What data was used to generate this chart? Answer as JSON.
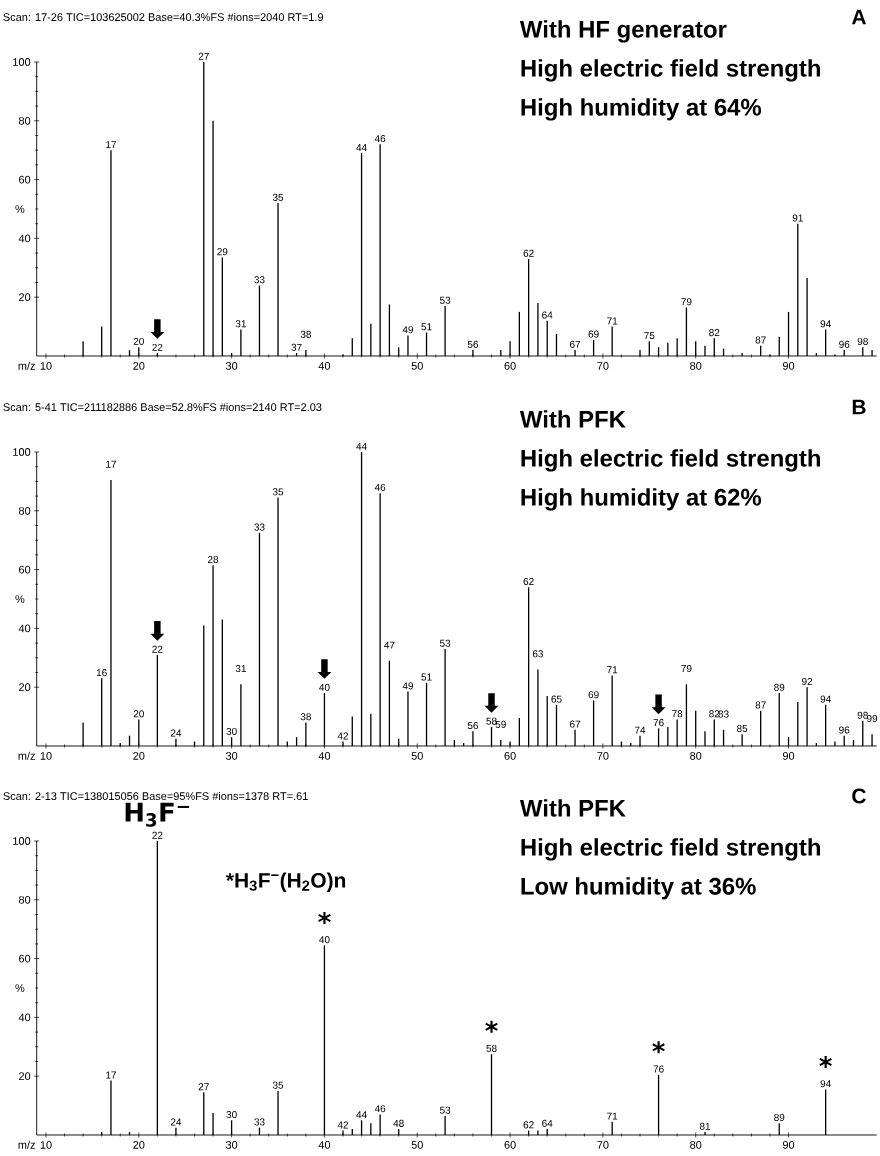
{
  "chart_data": [
    {
      "type": "bar",
      "title": "A",
      "subtitle": "Scan: 17-26   TIC=103625002   Base=40.3%FS   #ions=2040   RT=1.9",
      "xlabel": "m/z",
      "ylabel": "%",
      "color": "#000000",
      "x": [
        14,
        16,
        17,
        19,
        20,
        22,
        27,
        28,
        29,
        30,
        31,
        33,
        35,
        37,
        38,
        40,
        42,
        43,
        44,
        45,
        46,
        47,
        48,
        49,
        51,
        53,
        54,
        56,
        59,
        60,
        61,
        62,
        63,
        64,
        65,
        67,
        69,
        71,
        74,
        75,
        76,
        77,
        78,
        79,
        80,
        81,
        82,
        83,
        85,
        87,
        88,
        89,
        90,
        91,
        92,
        93,
        94,
        95,
        96,
        98,
        99
      ],
      "values": [
        5,
        10,
        70,
        2,
        3,
        1,
        100,
        80,
        33.5,
        1,
        9,
        24,
        52,
        1,
        2,
        null,
        0.5,
        6,
        69,
        11,
        72,
        17.5,
        3,
        7,
        8,
        17,
        null,
        2,
        2,
        5,
        15,
        33,
        18,
        12,
        7.5,
        2,
        5.5,
        10,
        2,
        5,
        3,
        4.5,
        6,
        16.5,
        5,
        3.5,
        6,
        2.5,
        1,
        3.5,
        0.5,
        6.5,
        15,
        45,
        26.5,
        1,
        9,
        0.5,
        2,
        3,
        2
      ],
      "xlim": [
        9,
        99.5
      ],
      "ylim": [
        0,
        100
      ],
      "xticks": [
        10,
        20,
        30,
        40,
        50,
        60,
        70,
        80,
        90
      ],
      "yticks": [
        20,
        40,
        60,
        80,
        100
      ],
      "annotations": [
        "With HF generator",
        "High electric field strength",
        "High humidity at 64%",
        {
          "text": "17",
          "x": 17,
          "y": 70
        },
        {
          "text": "20",
          "x": 20,
          "y": 3
        },
        {
          "text": "22",
          "x": 22,
          "y": 1
        },
        {
          "text": "27",
          "x": 27,
          "y": 100
        },
        {
          "text": "29",
          "x": 29,
          "y": 33.5
        },
        {
          "text": "31",
          "x": 31,
          "y": 9
        },
        {
          "text": "33",
          "x": 33,
          "y": 24
        },
        {
          "text": "35",
          "x": 35,
          "y": 52
        },
        {
          "text": "37",
          "x": 37,
          "y": 1
        },
        {
          "text": "38",
          "x": 38,
          "y": 2
        },
        {
          "text": "44",
          "x": 44,
          "y": 69
        },
        {
          "text": "46",
          "x": 46,
          "y": 72
        },
        {
          "text": "49",
          "x": 49,
          "y": 7
        },
        {
          "text": "51",
          "x": 51,
          "y": 8
        },
        {
          "text": "53",
          "x": 53,
          "y": 17
        },
        {
          "text": "56",
          "x": 56,
          "y": 2
        },
        {
          "text": "62",
          "x": 62,
          "y": 33
        },
        {
          "text": "64",
          "x": 64,
          "y": 12
        },
        {
          "text": "67",
          "x": 67,
          "y": 2
        },
        {
          "text": "69",
          "x": 69,
          "y": 5.5
        },
        {
          "text": "71",
          "x": 71,
          "y": 10
        },
        {
          "text": "75",
          "x": 75,
          "y": 5
        },
        {
          "text": "79",
          "x": 79,
          "y": 16.5
        },
        {
          "text": "82",
          "x": 82,
          "y": 6
        },
        {
          "text": "87",
          "x": 87,
          "y": 3.5
        },
        {
          "text": "91",
          "x": 91,
          "y": 45
        },
        {
          "text": "94",
          "x": 94,
          "y": 9
        },
        {
          "text": "96",
          "x": 96,
          "y": 2
        },
        {
          "text": "98",
          "x": 98,
          "y": 3
        },
        {
          "text": "⬇",
          "x": 22,
          "y": 1
        }
      ]
    },
    {
      "type": "bar",
      "title": "B",
      "subtitle": "Scan: 5-41   TIC=211182886   Base=52.8%FS   #ions=2140   RT=2.03",
      "xlabel": "m/z",
      "ylabel": "%",
      "color": "#000000",
      "x": [
        14,
        16,
        17,
        18,
        19,
        20,
        22,
        24,
        26,
        27,
        28,
        29,
        30,
        31,
        33,
        35,
        36,
        37,
        38,
        39,
        40,
        42,
        43,
        44,
        45,
        46,
        47,
        48,
        49,
        51,
        53,
        54,
        55,
        56,
        58,
        59,
        60,
        61,
        62,
        63,
        64,
        65,
        67,
        69,
        71,
        72,
        73,
        74,
        75,
        76,
        77,
        78,
        79,
        80,
        81,
        82,
        83,
        85,
        87,
        89,
        90,
        91,
        92,
        93,
        94,
        95,
        96,
        97,
        98,
        99
      ],
      "values": [
        8,
        23,
        90.5,
        1,
        3.5,
        9,
        31,
        2.5,
        1.5,
        41,
        61.5,
        43,
        3,
        21,
        72.5,
        84.5,
        1.5,
        3,
        8,
        null,
        18,
        1.5,
        10,
        100,
        11,
        86,
        29,
        2.5,
        18.5,
        21.5,
        33,
        2,
        1,
        5,
        6.5,
        2,
        1.5,
        9.5,
        54,
        26,
        17,
        14,
        5.5,
        15.5,
        24,
        1.5,
        1,
        3.5,
        null,
        6,
        6.5,
        9,
        21,
        12,
        5,
        9,
        5.5,
        4,
        12,
        18,
        3,
        15,
        20,
        1,
        14,
        1.5,
        3.5,
        2,
        8.5,
        4
      ],
      "xlim": [
        9,
        99.5
      ],
      "ylim": [
        0,
        100
      ],
      "xticks": [
        10,
        20,
        30,
        40,
        50,
        60,
        70,
        80,
        90
      ],
      "yticks": [
        20,
        40,
        60,
        80,
        100
      ],
      "annotations": [
        "With PFK",
        "High electric field strength",
        "High humidity at 62%",
        {
          "text": "16",
          "x": 16,
          "y": 23
        },
        {
          "text": "17",
          "x": 17,
          "y": 90.5
        },
        {
          "text": "20",
          "x": 20,
          "y": 9
        },
        {
          "text": "22",
          "x": 22,
          "y": 31
        },
        {
          "text": "24",
          "x": 24,
          "y": 2.5
        },
        {
          "text": "28",
          "x": 28,
          "y": 61.5
        },
        {
          "text": "30",
          "x": 30,
          "y": 3
        },
        {
          "text": "31",
          "x": 31,
          "y": 21
        },
        {
          "text": "33",
          "x": 33,
          "y": 72.5
        },
        {
          "text": "35",
          "x": 35,
          "y": 84.5
        },
        {
          "text": "38",
          "x": 38,
          "y": 8
        },
        {
          "text": "40",
          "x": 40,
          "y": 18
        },
        {
          "text": "42",
          "x": 42,
          "y": 1.5
        },
        {
          "text": "44",
          "x": 44,
          "y": 100
        },
        {
          "text": "46",
          "x": 46,
          "y": 86
        },
        {
          "text": "47",
          "x": 47,
          "y": 29
        },
        {
          "text": "49",
          "x": 49,
          "y": 18.5
        },
        {
          "text": "51",
          "x": 51,
          "y": 21.5
        },
        {
          "text": "53",
          "x": 53,
          "y": 33
        },
        {
          "text": "56",
          "x": 56,
          "y": 5
        },
        {
          "text": "58",
          "x": 58,
          "y": 6.5
        },
        {
          "text": "59",
          "x": 59,
          "y": 2
        },
        {
          "text": "62",
          "x": 62,
          "y": 54
        },
        {
          "text": "63",
          "x": 63,
          "y": 26
        },
        {
          "text": "65",
          "x": 65,
          "y": 14
        },
        {
          "text": "67",
          "x": 67,
          "y": 5.5
        },
        {
          "text": "69",
          "x": 69,
          "y": 15.5
        },
        {
          "text": "71",
          "x": 71,
          "y": 24
        },
        {
          "text": "74",
          "x": 74,
          "y": 3.5
        },
        {
          "text": "76",
          "x": 76,
          "y": 6
        },
        {
          "text": "78",
          "x": 78,
          "y": 9
        },
        {
          "text": "79",
          "x": 79,
          "y": 21
        },
        {
          "text": "82",
          "x": 82,
          "y": 9
        },
        {
          "text": "83",
          "x": 83,
          "y": 5.5
        },
        {
          "text": "85",
          "x": 85,
          "y": 4
        },
        {
          "text": "87",
          "x": 87,
          "y": 12
        },
        {
          "text": "89",
          "x": 89,
          "y": 18
        },
        {
          "text": "92",
          "x": 92,
          "y": 20
        },
        {
          "text": "94",
          "x": 94,
          "y": 14
        },
        {
          "text": "96",
          "x": 96,
          "y": 3.5
        },
        {
          "text": "98",
          "x": 98,
          "y": 8.5
        },
        {
          "text": "99",
          "x": 99,
          "y": 4
        },
        {
          "text": "⬇",
          "x": 22,
          "y": 31
        },
        {
          "text": "⬇",
          "x": 40,
          "y": 18
        },
        {
          "text": "⬇",
          "x": 58,
          "y": 6.5
        },
        {
          "text": "⬇",
          "x": 76,
          "y": 6
        }
      ]
    },
    {
      "type": "bar",
      "title": "C",
      "subtitle": "Scan: 2-13   TIC=138015056   Base=95%FS   #ions=1378   RT=.61",
      "xlabel": "m/z",
      "ylabel": "%",
      "color": "#000000",
      "x": [
        16,
        17,
        19,
        22,
        24,
        27,
        28,
        30,
        33,
        35,
        40,
        42,
        43,
        44,
        45,
        46,
        48,
        53,
        58,
        62,
        63,
        64,
        71,
        76,
        81,
        89,
        94
      ],
      "values": [
        1,
        18.5,
        1,
        100,
        2.5,
        14.5,
        7.5,
        5,
        2.5,
        15,
        64.5,
        1.5,
        2,
        5,
        4,
        7,
        2,
        6.5,
        27.5,
        1.5,
        1.5,
        2,
        4.5,
        20.5,
        1,
        4,
        15.5
      ],
      "xlim": [
        9,
        99.5
      ],
      "ylim": [
        0,
        100
      ],
      "xticks": [
        10,
        20,
        30,
        40,
        50,
        60,
        70,
        80,
        90
      ],
      "yticks": [
        20,
        40,
        60,
        80,
        100
      ],
      "annotations": [
        "With PFK",
        "High electric field strength",
        "Low humidity at 36%",
        "*H$_{3}$F$^{−}$(H$_{2}$O)n",
        {
          "text": "17",
          "x": 17,
          "y": 18.5
        },
        {
          "text": "22",
          "x": 22,
          "y": 100
        },
        {
          "text": "24",
          "x": 24,
          "y": 2.5
        },
        {
          "text": "27",
          "x": 27,
          "y": 14.5
        },
        {
          "text": "30",
          "x": 30,
          "y": 5
        },
        {
          "text": "33",
          "x": 33,
          "y": 2.5
        },
        {
          "text": "35",
          "x": 35,
          "y": 15
        },
        {
          "text": "40",
          "x": 40,
          "y": 64.5
        },
        {
          "text": "42",
          "x": 42,
          "y": 1.5
        },
        {
          "text": "44",
          "x": 44,
          "y": 5
        },
        {
          "text": "46",
          "x": 46,
          "y": 7
        },
        {
          "text": "48",
          "x": 48,
          "y": 2
        },
        {
          "text": "53",
          "x": 53,
          "y": 6.5
        },
        {
          "text": "58",
          "x": 58,
          "y": 27.5
        },
        {
          "text": "62",
          "x": 62,
          "y": 1.5
        },
        {
          "text": "64",
          "x": 64,
          "y": 2
        },
        {
          "text": "71",
          "x": 71,
          "y": 4.5
        },
        {
          "text": "76",
          "x": 76,
          "y": 20.5
        },
        {
          "text": "81",
          "x": 81,
          "y": 1
        },
        {
          "text": "89",
          "x": 89,
          "y": 4
        },
        {
          "text": "94",
          "x": 94,
          "y": 15.5
        },
        {
          "text": "H$_{3}$F$^{−}$",
          "x": 22,
          "y": 100
        },
        {
          "text": "*",
          "x": 40,
          "y": 64.5
        },
        {
          "text": "*",
          "x": 58,
          "y": 27.5
        },
        {
          "text": "*",
          "x": 76,
          "y": 20.5
        },
        {
          "text": "*",
          "x": 94,
          "y": 15.5
        }
      ]
    }
  ]
}
